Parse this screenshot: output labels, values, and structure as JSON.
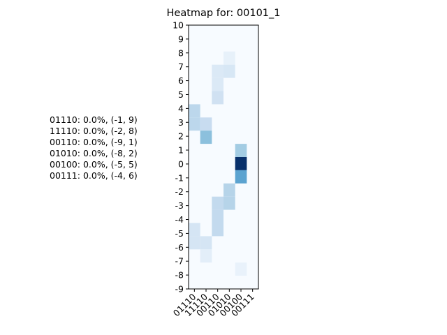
{
  "chart_data": {
    "type": "heatmap",
    "title": "Heatmap for: 00101_1",
    "xlabel": "",
    "ylabel": "",
    "categories": [
      "01110",
      "11110",
      "00110",
      "01010",
      "00100",
      "00111"
    ],
    "y_ticks": [
      10,
      9,
      8,
      7,
      6,
      5,
      4,
      3,
      2,
      1,
      0,
      -1,
      -2,
      -3,
      -4,
      -5,
      -6,
      -7,
      -8,
      -9
    ],
    "ylim": [
      -9,
      10
    ],
    "colormap": "Blues",
    "vmin": 0,
    "vmax": 1,
    "cells": [
      {
        "col": 0,
        "row": 4,
        "value": 0.28
      },
      {
        "col": 0,
        "row": 3,
        "value": 0.28
      },
      {
        "col": 0,
        "row": -5,
        "value": 0.17
      },
      {
        "col": 0,
        "row": -6,
        "value": 0.17
      },
      {
        "col": 1,
        "row": 3,
        "value": 0.24
      },
      {
        "col": 1,
        "row": 2,
        "value": 0.42
      },
      {
        "col": 1,
        "row": -6,
        "value": 0.17
      },
      {
        "col": 1,
        "row": -7,
        "value": 0.1
      },
      {
        "col": 2,
        "row": 7,
        "value": 0.14
      },
      {
        "col": 2,
        "row": 6,
        "value": 0.14
      },
      {
        "col": 2,
        "row": 5,
        "value": 0.2
      },
      {
        "col": 2,
        "row": -3,
        "value": 0.26
      },
      {
        "col": 2,
        "row": -4,
        "value": 0.26
      },
      {
        "col": 2,
        "row": -5,
        "value": 0.26
      },
      {
        "col": 3,
        "row": 8,
        "value": 0.08
      },
      {
        "col": 3,
        "row": 7,
        "value": 0.16
      },
      {
        "col": 3,
        "row": -2,
        "value": 0.3
      },
      {
        "col": 3,
        "row": -3,
        "value": 0.3
      },
      {
        "col": 4,
        "row": 1,
        "value": 0.36
      },
      {
        "col": 4,
        "row": 0,
        "value": 1.0
      },
      {
        "col": 4,
        "row": -1,
        "value": 0.55
      },
      {
        "col": 4,
        "row": -8,
        "value": 0.07
      }
    ],
    "side_labels": [
      "01110: 0.0%, (-1, 9)",
      "11110: 0.0%, (-2, 8)",
      "00110: 0.0%, (-9, 1)",
      "01010: 0.0%, (-8, 2)",
      "00100: 0.0%, (-5, 5)",
      "00111: 0.0%, (-4, 6)"
    ]
  }
}
